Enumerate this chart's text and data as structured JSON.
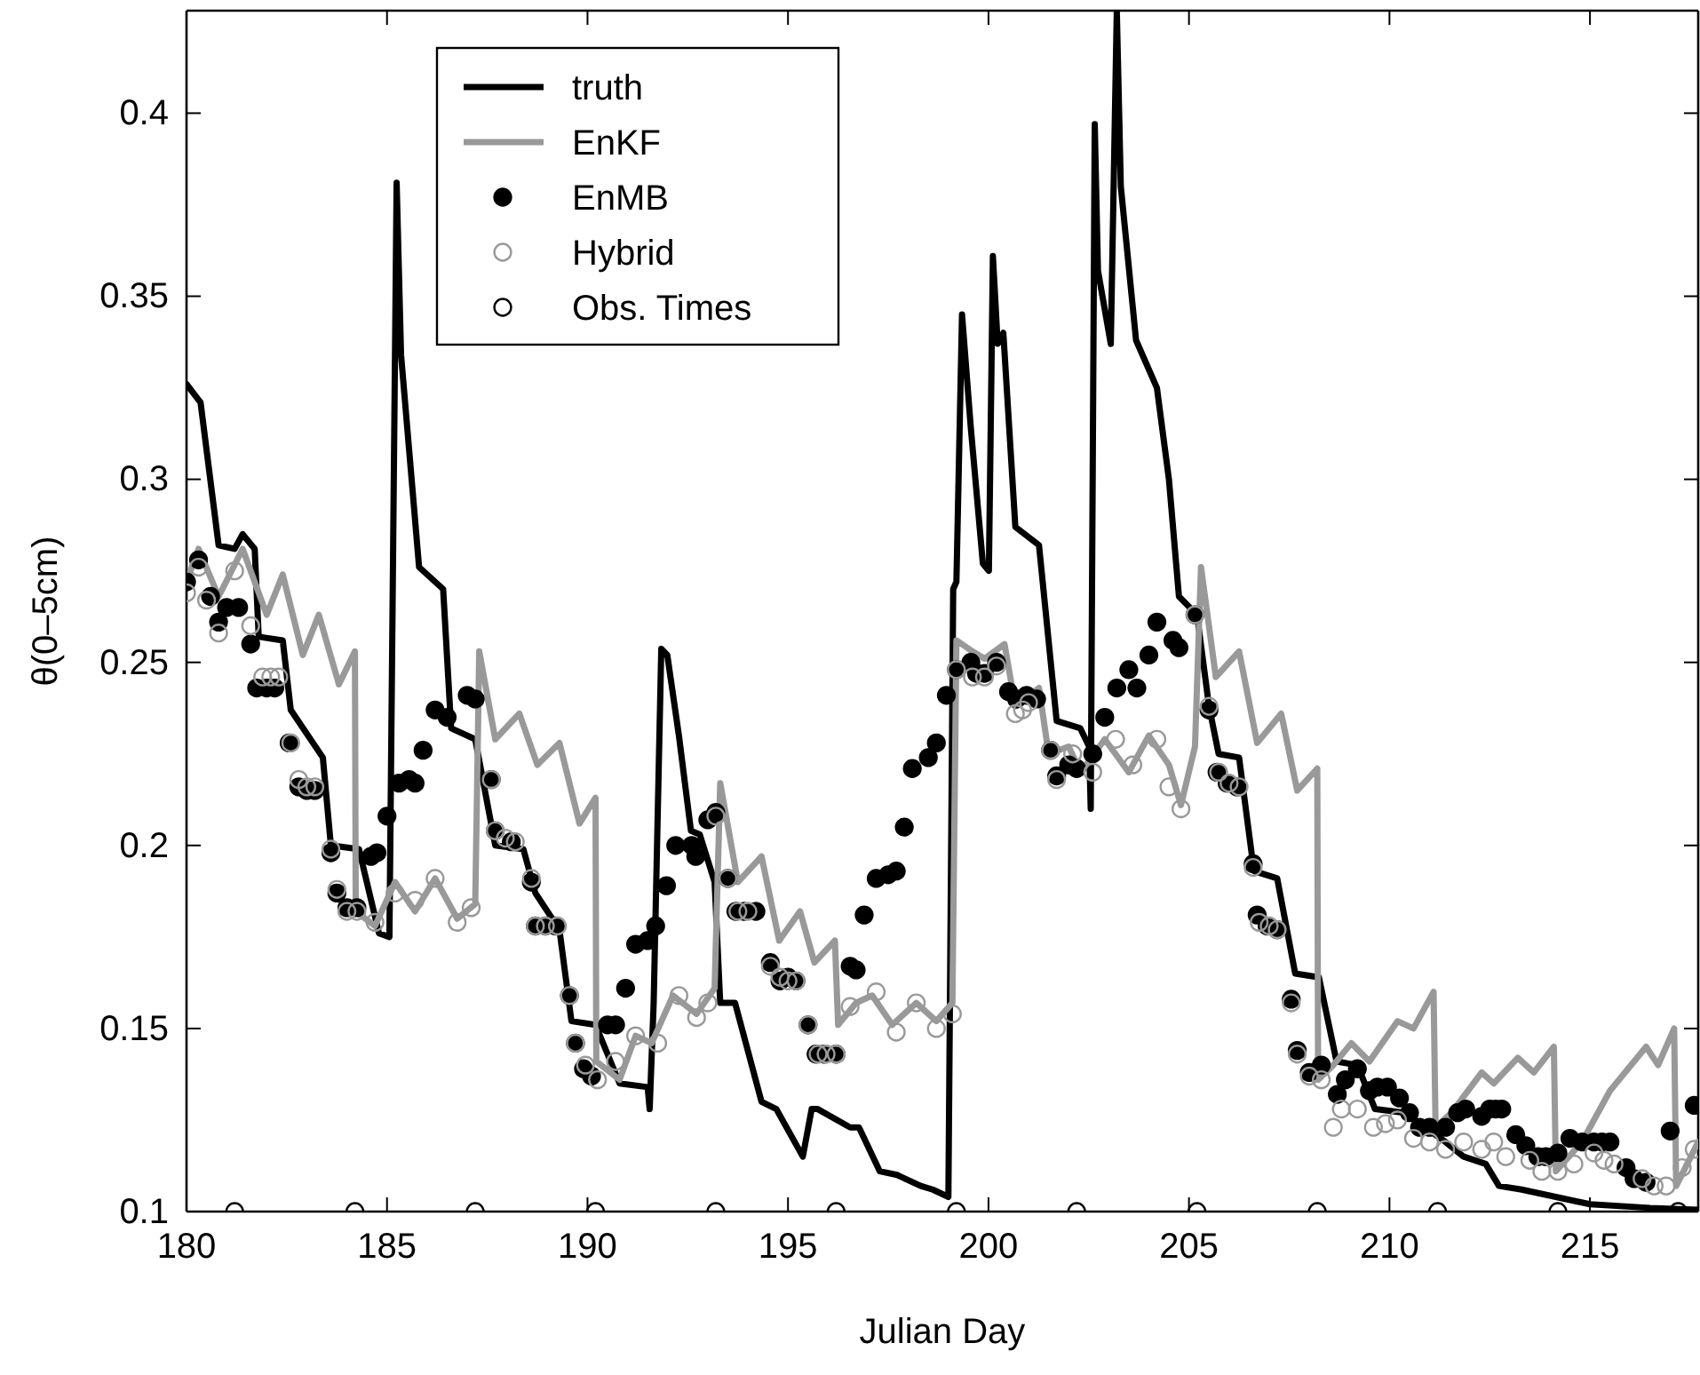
{
  "chart_data": {
    "type": "line",
    "xlabel": "Julian Day",
    "ylabel": "θ(0–5cm)",
    "xlim": [
      180,
      217.7
    ],
    "ylim": [
      0.1,
      0.428
    ],
    "xticks": [
      180,
      185,
      190,
      195,
      200,
      205,
      210,
      215
    ],
    "yticks": [
      {
        "value": 0.1,
        "label": "0.1"
      },
      {
        "value": 0.15,
        "label": "0.15"
      },
      {
        "value": 0.2,
        "label": "0.2"
      },
      {
        "value": 0.25,
        "label": "0.25"
      },
      {
        "value": 0.3,
        "label": "0.3"
      },
      {
        "value": 0.35,
        "label": "0.35"
      },
      {
        "value": 0.4,
        "label": "0.4"
      }
    ],
    "grid": false,
    "legend": "top left",
    "line_style": "solid",
    "series": [
      {
        "name": "truth",
        "color": "#000000",
        "marker": "none",
        "x": [
          180,
          180.35,
          180.8,
          181.2,
          181.4,
          181.7,
          181.8,
          182.4,
          182.6,
          183.4,
          183.6,
          184.3,
          184.8,
          185.06,
          185.24,
          185.35,
          185.8,
          186.2,
          186.4,
          186.6,
          187.2,
          187.7,
          188.4,
          188.7,
          189.3,
          189.6,
          190.2,
          190.8,
          191.5,
          191.55,
          191.65,
          191.84,
          191.99,
          192.28,
          192.58,
          192.8,
          193.17,
          193.31,
          193.68,
          194.34,
          194.71,
          195.37,
          195.59,
          195.74,
          196.55,
          196.77,
          197.29,
          197.72,
          198.31,
          198.61,
          199.0,
          199.12,
          199.2,
          199.34,
          199.56,
          199.86,
          200.01,
          200.11,
          200.23,
          200.37,
          200.67,
          201.26,
          201.7,
          202.29,
          202.51,
          202.55,
          202.65,
          202.73,
          203.05,
          203.2,
          203.3,
          203.68,
          204.2,
          204.5,
          204.75,
          205.2,
          205.5,
          205.74,
          206.25,
          206.62,
          207.2,
          207.65,
          208.24,
          208.68,
          209.2,
          209.64,
          210.37,
          211.4,
          211.85,
          212.4,
          212.73,
          213.3,
          215,
          216.5,
          217.7
        ],
        "values": [
          0.326,
          0.321,
          0.282,
          0.281,
          0.285,
          0.281,
          0.257,
          0.256,
          0.237,
          0.224,
          0.2,
          0.199,
          0.176,
          0.175,
          0.381,
          0.334,
          0.276,
          0.272,
          0.27,
          0.232,
          0.229,
          0.2,
          0.199,
          0.187,
          0.177,
          0.152,
          0.151,
          0.135,
          0.134,
          0.128,
          0.157,
          0.2537,
          0.252,
          0.23,
          0.204,
          0.203,
          0.19,
          0.157,
          0.157,
          0.13,
          0.128,
          0.115,
          0.128,
          0.128,
          0.123,
          0.123,
          0.111,
          0.11,
          0.107,
          0.106,
          0.104,
          0.27,
          0.272,
          0.345,
          0.314,
          0.277,
          0.275,
          0.361,
          0.337,
          0.34,
          0.287,
          0.282,
          0.234,
          0.232,
          0.227,
          0.21,
          0.397,
          0.357,
          0.337,
          0.428,
          0.38,
          0.338,
          0.325,
          0.3,
          0.268,
          0.263,
          0.238,
          0.225,
          0.224,
          0.193,
          0.191,
          0.165,
          0.164,
          0.141,
          0.14,
          0.128,
          0.127,
          0.119,
          0.115,
          0.113,
          0.107,
          0.106,
          0.102,
          0.101,
          0.1005
        ]
      },
      {
        "name": "EnKF",
        "color": "#999999",
        "marker": "none",
        "x": [
          180,
          180.3,
          180.8,
          181.4,
          182.0,
          182.4,
          182.9,
          183.3,
          183.8,
          184.2,
          184.22,
          184.7,
          185.2,
          185.7,
          186.2,
          186.75,
          187.2,
          187.3,
          187.7,
          188.3,
          188.75,
          189.3,
          189.8,
          190.2,
          190.22,
          190.8,
          191.2,
          191.6,
          192.13,
          192.72,
          193.17,
          193.31,
          193.75,
          194.34,
          194.78,
          195.3,
          195.66,
          196.17,
          196.25,
          196.7,
          197.1,
          197.6,
          198.2,
          198.7,
          199.1,
          199.2,
          199.6,
          199.9,
          200.4,
          200.67,
          201.26,
          201.5,
          202.0,
          202.3,
          202.9,
          203.5,
          204.0,
          204.5,
          204.8,
          205.15,
          205.3,
          205.67,
          206.25,
          206.7,
          207.3,
          207.7,
          208.2,
          208.22,
          208.6,
          209.05,
          209.5,
          210.2,
          210.6,
          211.1,
          211.15,
          211.55,
          212.3,
          212.6,
          213.2,
          213.6,
          214.1,
          214.15,
          214.8,
          215.5,
          216.4,
          216.7,
          217.1,
          217.15,
          217.7
        ],
        "values": [
          0.272,
          0.281,
          0.268,
          0.281,
          0.263,
          0.274,
          0.252,
          0.263,
          0.244,
          0.253,
          0.182,
          0.178,
          0.19,
          0.182,
          0.191,
          0.18,
          0.184,
          0.253,
          0.229,
          0.236,
          0.222,
          0.228,
          0.206,
          0.213,
          0.141,
          0.136,
          0.148,
          0.146,
          0.159,
          0.154,
          0.161,
          0.217,
          0.19,
          0.197,
          0.174,
          0.182,
          0.168,
          0.174,
          0.151,
          0.157,
          0.159,
          0.151,
          0.157,
          0.152,
          0.157,
          0.256,
          0.253,
          0.251,
          0.255,
          0.238,
          0.243,
          0.225,
          0.227,
          0.22,
          0.229,
          0.22,
          0.23,
          0.222,
          0.211,
          0.227,
          0.276,
          0.246,
          0.253,
          0.228,
          0.236,
          0.215,
          0.221,
          0.136,
          0.14,
          0.146,
          0.141,
          0.152,
          0.15,
          0.16,
          0.123,
          0.127,
          0.138,
          0.135,
          0.142,
          0.138,
          0.145,
          0.111,
          0.119,
          0.133,
          0.145,
          0.14,
          0.15,
          0.107,
          0.119
        ]
      },
      {
        "name": "EnMB",
        "type": "scatter",
        "color": "#000000",
        "marker": "circle",
        "x": [
          180.0,
          180.3,
          180.6,
          180.8,
          181.0,
          181.3,
          181.6,
          181.75,
          182.0,
          182.2,
          182.56,
          182.8,
          183.0,
          183.2,
          183.6,
          183.75,
          184.0,
          184.25,
          184.6,
          184.75,
          185.0,
          185.3,
          185.55,
          185.7,
          185.9,
          186.2,
          186.5,
          187.0,
          187.2,
          187.6,
          187.7,
          188.1,
          188.6,
          188.7,
          188.95,
          189.2,
          189.55,
          189.7,
          189.9,
          190.1,
          190.5,
          190.7,
          190.95,
          191.2,
          191.5,
          191.7,
          191.97,
          192.2,
          192.6,
          192.7,
          193.0,
          193.2,
          193.5,
          193.7,
          193.9,
          194.2,
          194.56,
          194.8,
          195.0,
          195.2,
          195.5,
          195.7,
          195.9,
          196.2,
          196.55,
          196.7,
          196.9,
          197.2,
          197.5,
          197.7,
          197.9,
          198.1,
          198.5,
          198.7,
          198.95,
          199.2,
          199.56,
          199.7,
          199.9,
          200.2,
          200.5,
          200.7,
          200.95,
          201.2,
          201.55,
          201.7,
          202.0,
          202.2,
          202.6,
          202.9,
          203.2,
          203.5,
          203.7,
          204.0,
          204.2,
          204.6,
          204.75,
          205.15,
          205.5,
          205.7,
          205.95,
          206.2,
          206.6,
          206.7,
          206.95,
          207.2,
          207.55,
          207.7,
          208.0,
          208.3,
          208.7,
          208.9,
          209.2,
          209.5,
          209.7,
          209.95,
          210.25,
          210.5,
          210.75,
          211.0,
          211.4,
          211.7,
          211.9,
          212.3,
          212.5,
          212.65,
          212.8,
          213.15,
          213.4,
          213.7,
          213.9,
          214.2,
          214.5,
          214.8,
          215.1,
          215.3,
          215.5,
          215.9,
          216.1,
          216.4,
          217.0,
          217.6
        ],
        "values": [
          0.272,
          0.278,
          0.268,
          0.261,
          0.265,
          0.265,
          0.255,
          0.243,
          0.243,
          0.243,
          0.228,
          0.216,
          0.215,
          0.215,
          0.198,
          0.187,
          0.183,
          0.183,
          0.197,
          0.198,
          0.208,
          0.217,
          0.218,
          0.217,
          0.226,
          0.237,
          0.235,
          0.241,
          0.24,
          0.218,
          0.204,
          0.201,
          0.19,
          0.178,
          0.178,
          0.178,
          0.159,
          0.146,
          0.139,
          0.137,
          0.151,
          0.151,
          0.161,
          0.173,
          0.174,
          0.178,
          0.189,
          0.2,
          0.2,
          0.197,
          0.207,
          0.209,
          0.191,
          0.182,
          0.182,
          0.182,
          0.168,
          0.163,
          0.164,
          0.163,
          0.151,
          0.143,
          0.143,
          0.143,
          0.167,
          0.166,
          0.181,
          0.191,
          0.192,
          0.193,
          0.205,
          0.221,
          0.224,
          0.228,
          0.241,
          0.248,
          0.25,
          0.247,
          0.247,
          0.25,
          0.242,
          0.24,
          0.241,
          0.24,
          0.226,
          0.219,
          0.222,
          0.221,
          0.225,
          0.235,
          0.243,
          0.248,
          0.243,
          0.252,
          0.261,
          0.256,
          0.254,
          0.263,
          0.237,
          0.22,
          0.217,
          0.216,
          0.195,
          0.181,
          0.178,
          0.177,
          0.158,
          0.144,
          0.138,
          0.14,
          0.132,
          0.136,
          0.139,
          0.133,
          0.134,
          0.134,
          0.131,
          0.127,
          0.123,
          0.123,
          0.123,
          0.127,
          0.128,
          0.126,
          0.128,
          0.128,
          0.128,
          0.121,
          0.118,
          0.115,
          0.115,
          0.116,
          0.12,
          0.119,
          0.119,
          0.119,
          0.119,
          0.112,
          0.109,
          0.108,
          0.122,
          0.129
        ]
      },
      {
        "name": "Hybrid",
        "type": "scatter",
        "color": "#999999",
        "marker": "circle",
        "x": [
          180.0,
          180.3,
          180.5,
          180.8,
          181.2,
          181.6,
          181.9,
          182.1,
          182.3,
          182.6,
          182.8,
          183.0,
          183.2,
          183.6,
          183.75,
          184.0,
          184.25,
          184.7,
          185.2,
          185.7,
          186.2,
          186.75,
          187.1,
          187.6,
          187.7,
          187.95,
          188.2,
          188.6,
          188.7,
          188.95,
          189.25,
          189.55,
          189.7,
          189.95,
          190.25,
          190.7,
          191.2,
          191.75,
          192.28,
          192.72,
          193.0,
          193.2,
          193.5,
          193.75,
          194.0,
          194.56,
          194.8,
          195.0,
          195.2,
          195.5,
          195.75,
          195.95,
          196.2,
          196.55,
          197.2,
          197.7,
          198.2,
          198.7,
          199.1,
          199.2,
          199.6,
          199.9,
          200.2,
          200.67,
          200.85,
          201.0,
          201.55,
          201.7,
          202.1,
          202.6,
          203.17,
          203.6,
          204.2,
          204.5,
          204.8,
          205.15,
          205.5,
          205.74,
          206.0,
          206.25,
          206.6,
          206.75,
          207.0,
          207.2,
          207.55,
          207.7,
          208.0,
          208.3,
          208.6,
          208.8,
          209.2,
          209.6,
          209.9,
          210.2,
          210.6,
          211.0,
          211.4,
          211.85,
          212.3,
          212.6,
          212.9,
          213.5,
          213.8,
          214.2,
          214.6,
          215.1,
          215.35,
          215.6,
          216.3,
          216.6,
          216.9,
          217.3,
          217.6
        ],
        "values": [
          0.269,
          0.276,
          0.267,
          0.258,
          0.275,
          0.26,
          0.246,
          0.246,
          0.246,
          0.228,
          0.218,
          0.216,
          0.216,
          0.199,
          0.188,
          0.182,
          0.182,
          0.179,
          0.187,
          0.185,
          0.191,
          0.179,
          0.183,
          0.218,
          0.204,
          0.202,
          0.201,
          0.191,
          0.178,
          0.178,
          0.178,
          0.159,
          0.146,
          0.14,
          0.136,
          0.141,
          0.148,
          0.146,
          0.159,
          0.153,
          0.157,
          0.208,
          0.191,
          0.182,
          0.182,
          0.167,
          0.164,
          0.163,
          0.163,
          0.151,
          0.143,
          0.143,
          0.143,
          0.156,
          0.16,
          0.149,
          0.157,
          0.15,
          0.154,
          0.248,
          0.246,
          0.246,
          0.249,
          0.236,
          0.237,
          0.239,
          0.226,
          0.218,
          0.225,
          0.22,
          0.229,
          0.222,
          0.229,
          0.216,
          0.21,
          0.263,
          0.238,
          0.22,
          0.217,
          0.216,
          0.194,
          0.179,
          0.178,
          0.177,
          0.157,
          0.143,
          0.137,
          0.136,
          0.123,
          0.128,
          0.128,
          0.123,
          0.124,
          0.125,
          0.12,
          0.119,
          0.117,
          0.119,
          0.117,
          0.119,
          0.115,
          0.114,
          0.111,
          0.111,
          0.113,
          0.116,
          0.114,
          0.113,
          0.109,
          0.107,
          0.107,
          0.112,
          0.117
        ]
      },
      {
        "name": "Obs. Times",
        "type": "scatter",
        "color": "#000000",
        "marker": "circle",
        "x": [
          181.2,
          184.2,
          187.2,
          190.2,
          193.2,
          196.2,
          199.2,
          202.2,
          205.2,
          208.2,
          211.2,
          214.2,
          217.2
        ],
        "values": [
          0.1,
          0.1,
          0.1,
          0.1,
          0.1,
          0.1,
          0.1,
          0.1,
          0.1,
          0.1,
          0.1,
          0.1,
          0.1
        ]
      }
    ]
  }
}
